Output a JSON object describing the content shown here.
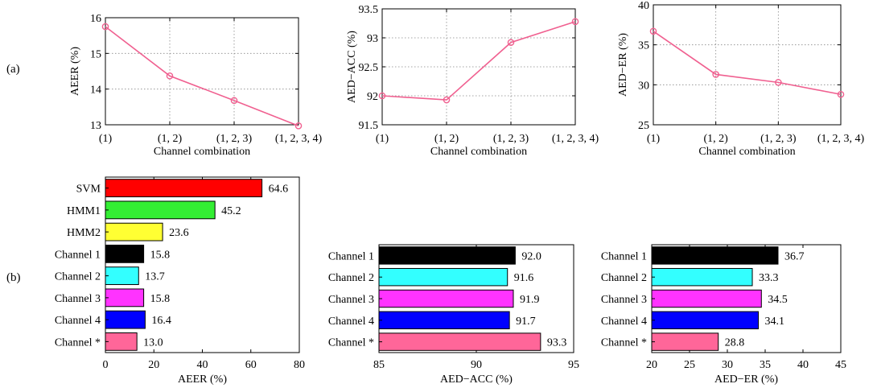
{
  "panel_labels": {
    "a": "(a)",
    "b": "(b)"
  },
  "chart_data": [
    {
      "id": "a1",
      "type": "line",
      "x": [
        "(1)",
        "(1, 2)",
        "(1, 2, 3)",
        "(1, 2, 3, 4)"
      ],
      "values": [
        15.75,
        14.37,
        13.68,
        12.97
      ],
      "xlabel": "Channel combination",
      "ylabel": "AEER (%)",
      "ylim": [
        13,
        16
      ],
      "yticks": [
        13,
        14,
        15,
        16
      ],
      "ytick_labels": [
        "13",
        "14",
        "15",
        "16"
      ],
      "grid": true,
      "color": "#f06090"
    },
    {
      "id": "a2",
      "type": "line",
      "x": [
        "(1)",
        "(1, 2)",
        "(1, 2, 3)",
        "(1, 2, 3, 4)"
      ],
      "values": [
        92.0,
        91.93,
        92.92,
        93.28
      ],
      "xlabel": "Channel combination",
      "ylabel": "AED−ACC (%)",
      "ylim": [
        91.5,
        93.5
      ],
      "yticks": [
        91.5,
        92,
        92.5,
        93,
        93.5
      ],
      "ytick_labels": [
        "91.5",
        "92",
        "92.5",
        "93",
        "93.5"
      ],
      "grid": true,
      "color": "#f06090"
    },
    {
      "id": "a3",
      "type": "line",
      "x": [
        "(1)",
        "(1, 2)",
        "(1, 2, 3)",
        "(1, 2, 3, 4)"
      ],
      "values": [
        36.7,
        31.3,
        30.3,
        28.8
      ],
      "xlabel": "Channel combination",
      "ylabel": "AED−ER (%)",
      "ylim": [
        25,
        40
      ],
      "yticks": [
        25,
        30,
        35,
        40
      ],
      "ytick_labels": [
        "25",
        "30",
        "35",
        "40"
      ],
      "grid": true,
      "color": "#f06090"
    },
    {
      "id": "b1",
      "type": "bar",
      "orientation": "horizontal",
      "categories": [
        "SVM",
        "HMM1",
        "HMM2",
        "Channel 1",
        "Channel 2",
        "Channel 3",
        "Channel 4",
        "Channel *"
      ],
      "values": [
        64.6,
        45.2,
        23.6,
        15.8,
        13.7,
        15.8,
        16.4,
        13.0
      ],
      "value_labels": [
        "64.6",
        "45.2",
        "23.6",
        "15.8",
        "13.7",
        "15.8",
        "16.4",
        "13.0"
      ],
      "colors": [
        "#ff0000",
        "#33ee33",
        "#ffff33",
        "#000000",
        "#33ffff",
        "#ff33ff",
        "#0000ff",
        "#ff6699"
      ],
      "xlabel": "AEER (%)",
      "xlim": [
        0,
        80
      ],
      "xticks": [
        0,
        20,
        40,
        60,
        80
      ],
      "xtick_labels": [
        "0",
        "20",
        "40",
        "60",
        "80"
      ]
    },
    {
      "id": "b2",
      "type": "bar",
      "orientation": "horizontal",
      "categories": [
        "Channel 1",
        "Channel 2",
        "Channel 3",
        "Channel 4",
        "Channel *"
      ],
      "values": [
        92.0,
        91.6,
        91.9,
        91.7,
        93.3
      ],
      "value_labels": [
        "92.0",
        "91.6",
        "91.9",
        "91.7",
        "93.3"
      ],
      "colors": [
        "#000000",
        "#33ffff",
        "#ff33ff",
        "#0000ff",
        "#ff6699"
      ],
      "xlabel": "AED−ACC (%)",
      "xlim": [
        85,
        95
      ],
      "xticks": [
        85,
        90,
        95
      ],
      "xtick_labels": [
        "85",
        "90",
        "95"
      ]
    },
    {
      "id": "b3",
      "type": "bar",
      "orientation": "horizontal",
      "categories": [
        "Channel 1",
        "Channel 2",
        "Channel 3",
        "Channel 4",
        "Channel *"
      ],
      "values": [
        36.7,
        33.3,
        34.5,
        34.1,
        28.8
      ],
      "value_labels": [
        "36.7",
        "33.3",
        "34.5",
        "34.1",
        "28.8"
      ],
      "colors": [
        "#000000",
        "#33ffff",
        "#ff33ff",
        "#0000ff",
        "#ff6699"
      ],
      "xlabel": "AED−ER (%)",
      "xlim": [
        20,
        45
      ],
      "xticks": [
        20,
        25,
        30,
        35,
        40,
        45
      ],
      "xtick_labels": [
        "20",
        "25",
        "30",
        "35",
        "40",
        "45"
      ]
    }
  ]
}
